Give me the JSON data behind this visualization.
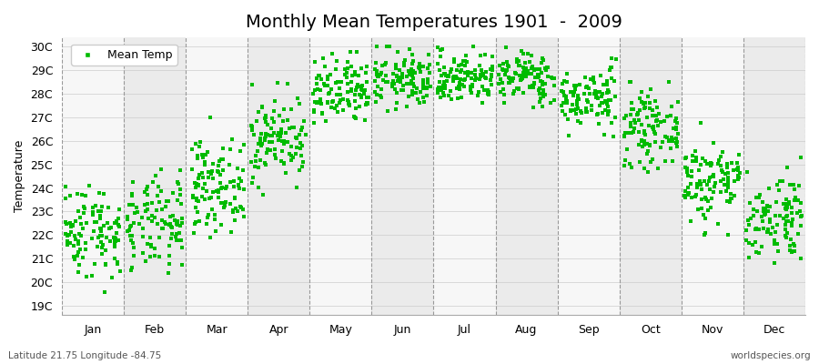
{
  "title": "Monthly Mean Temperatures 1901  -  2009",
  "ylabel": "Temperature",
  "yticks": [
    19,
    20,
    21,
    22,
    23,
    24,
    25,
    26,
    27,
    28,
    29,
    30
  ],
  "ytick_labels": [
    "19C",
    "20C",
    "21C",
    "22C",
    "23C",
    "24C",
    "25C",
    "26C",
    "27C",
    "28C",
    "29C",
    "30C"
  ],
  "ylim": [
    18.6,
    30.4
  ],
  "months": [
    "Jan",
    "Feb",
    "Mar",
    "Apr",
    "May",
    "Jun",
    "Jul",
    "Aug",
    "Sep",
    "Oct",
    "Nov",
    "Dec"
  ],
  "monthly_mean": [
    22.2,
    22.4,
    24.1,
    26.1,
    28.0,
    28.6,
    28.7,
    28.7,
    27.8,
    26.5,
    24.3,
    22.8
  ],
  "monthly_std": [
    1.0,
    1.0,
    0.95,
    0.9,
    0.75,
    0.6,
    0.55,
    0.55,
    0.65,
    0.75,
    0.9,
    0.95
  ],
  "monthly_min": [
    19.0,
    19.2,
    21.0,
    23.5,
    26.0,
    27.2,
    27.3,
    27.3,
    26.2,
    24.5,
    22.0,
    20.8
  ],
  "monthly_max": [
    26.0,
    25.8,
    27.0,
    28.5,
    29.8,
    30.0,
    30.0,
    30.0,
    29.5,
    28.5,
    27.0,
    25.5
  ],
  "n_years": 109,
  "dot_color": "#00bb00",
  "dot_size": 5,
  "bg_dark": "#ebebeb",
  "bg_light": "#f7f7f7",
  "title_fontsize": 14,
  "label_fontsize": 9,
  "tick_fontsize": 9,
  "legend_label": "Mean Temp",
  "footnote_left": "Latitude 21.75 Longitude -84.75",
  "footnote_right": "worldspecies.org"
}
